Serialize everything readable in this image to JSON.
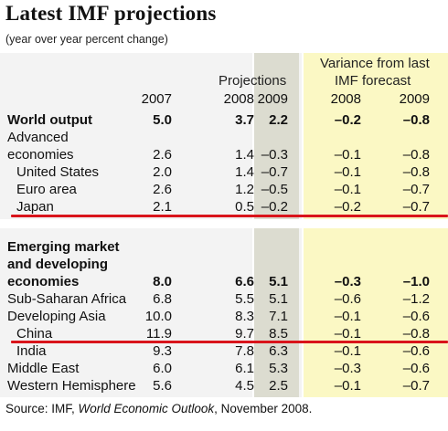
{
  "title": "Latest IMF projections",
  "subtitle": "(year over year percent change)",
  "header": {
    "projections": "Projections",
    "variance_line1": "Variance from last",
    "variance_line2": "IMF forecast",
    "years": [
      "2007",
      "2008",
      "2009",
      "2008",
      "2009"
    ]
  },
  "rows": [
    {
      "label": "World output",
      "bold": true,
      "values": [
        "5.0",
        "3.7",
        "2.2",
        "–0.2",
        "–0.8"
      ]
    },
    {
      "label": "Advanced",
      "values": [
        "",
        "",
        "",
        "",
        ""
      ]
    },
    {
      "label": "economies",
      "values": [
        "2.6",
        "1.4",
        "–0.3",
        "–0.1",
        "–0.8"
      ]
    },
    {
      "label": "United States",
      "indent": true,
      "values": [
        "2.0",
        "1.4",
        "–0.7",
        "–0.1",
        "–0.8"
      ]
    },
    {
      "label": "Euro area",
      "indent": true,
      "values": [
        "2.6",
        "1.2",
        "–0.5",
        "–0.1",
        "–0.7"
      ]
    },
    {
      "label": "Japan",
      "indent": true,
      "values": [
        "2.1",
        "0.5",
        "–0.2",
        "–0.2",
        "–0.7"
      ]
    },
    {
      "label": "Emerging market",
      "bold": true,
      "values": [
        "",
        "",
        "",
        "",
        ""
      ]
    },
    {
      "label": "and developing",
      "bold": true,
      "values": [
        "",
        "",
        "",
        "",
        ""
      ]
    },
    {
      "label": "economies",
      "bold": true,
      "values": [
        "8.0",
        "6.6",
        "5.1",
        "–0.3",
        "–1.0"
      ]
    },
    {
      "label": "Sub-Saharan Africa",
      "values": [
        "6.8",
        "5.5",
        "5.1",
        "–0.6",
        "–1.2"
      ]
    },
    {
      "label": "Developing Asia",
      "values": [
        "10.0",
        "8.3",
        "7.1",
        "–0.1",
        "–0.6"
      ]
    },
    {
      "label": "China",
      "indent": true,
      "values": [
        "11.9",
        "9.7",
        "8.5",
        "–0.1",
        "–0.8"
      ]
    },
    {
      "label": "India",
      "indent": true,
      "values": [
        "9.3",
        "7.8",
        "6.3",
        "–0.1",
        "–0.6"
      ]
    },
    {
      "label": "Middle East",
      "values": [
        "6.0",
        "6.1",
        "5.3",
        "–0.3",
        "–0.6"
      ]
    },
    {
      "label": "Western Hemisphere",
      "values": [
        "5.6",
        "4.5",
        "2.5",
        "–0.1",
        "–0.7"
      ]
    }
  ],
  "source": {
    "prefix": "Source: IMF, ",
    "publication": "World Economic Outlook",
    "suffix": ", November 2008."
  },
  "annotation_color": "#d9141b"
}
